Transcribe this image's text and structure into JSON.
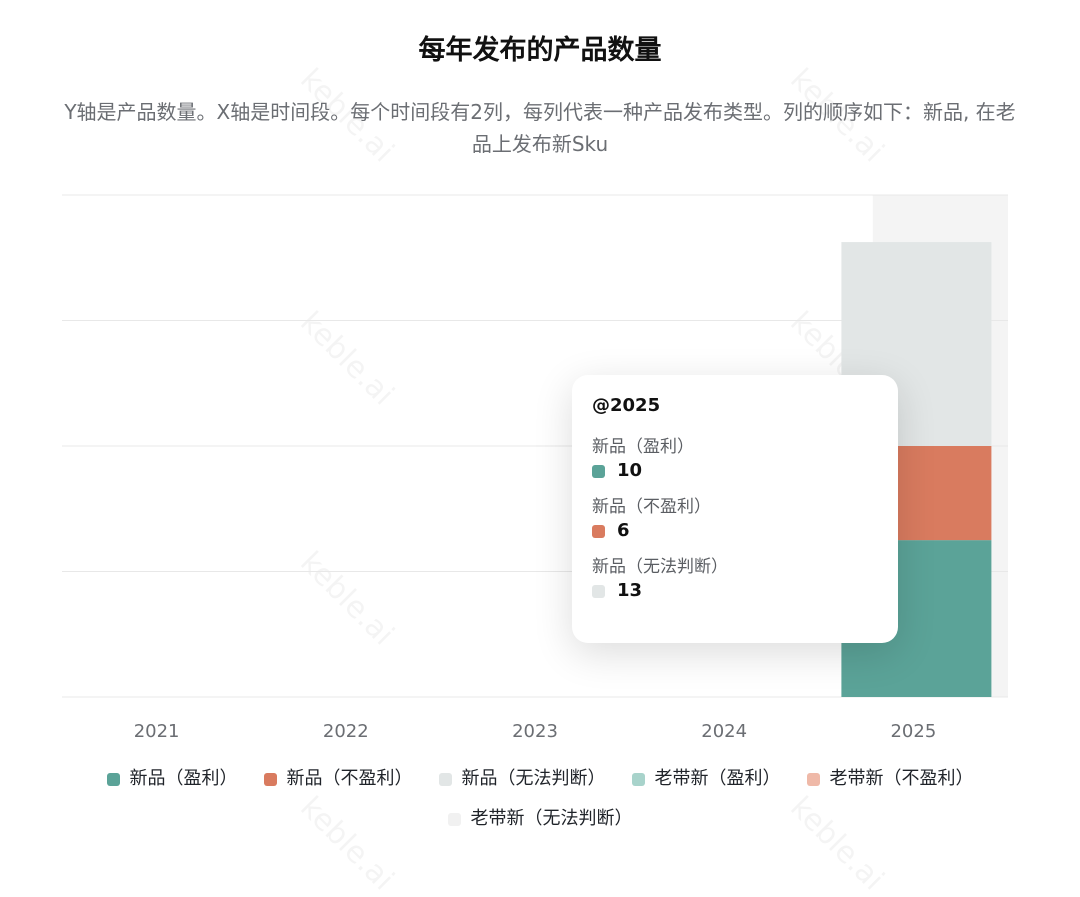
{
  "title": "每年发布的产品数量",
  "subtitle": "Y轴是产品数量。X轴是时间段。每个时间段有2列，每列代表一种产品发布类型。列的顺序如下：新品, 在老品上发布新Sku",
  "watermark": "keble.ai",
  "colors": {
    "new_profit": "#5ba398",
    "new_loss": "#d97b5f",
    "new_unknown": "#e2e6e6",
    "old_profit": "#a8d3cb",
    "old_loss": "#efb9a8",
    "old_unknown": "#f1f1f1",
    "highlight_band": "#f4f4f4",
    "grid": "#e8e8e8"
  },
  "chart_data": {
    "type": "bar",
    "stacked": true,
    "categories": [
      "2021",
      "2022",
      "2023",
      "2024",
      "2025"
    ],
    "series": [
      {
        "name": "新品（盈利）",
        "stack": "新品",
        "values": [
          0,
          0,
          0,
          0,
          10
        ]
      },
      {
        "name": "新品（不盈利）",
        "stack": "新品",
        "values": [
          0,
          0,
          0,
          0,
          6
        ]
      },
      {
        "name": "新品（无法判断）",
        "stack": "新品",
        "values": [
          0,
          0,
          0,
          0,
          13
        ]
      },
      {
        "name": "老带新（盈利）",
        "stack": "老带新",
        "values": [
          0,
          0,
          0,
          0,
          0
        ]
      },
      {
        "name": "老带新（不盈利）",
        "stack": "老带新",
        "values": [
          0,
          0,
          0,
          0,
          0
        ]
      },
      {
        "name": "老带新（无法判断）",
        "stack": "老带新",
        "values": [
          0,
          0,
          0,
          0,
          0
        ]
      }
    ],
    "ylim": [
      0,
      32
    ],
    "grid": true,
    "highlighted_category": "2025"
  },
  "tooltip": {
    "title": "@2025",
    "rows": [
      {
        "name": "新品（盈利）",
        "value": "10",
        "color_key": "new_profit"
      },
      {
        "name": "新品（不盈利）",
        "value": "6",
        "color_key": "new_loss"
      },
      {
        "name": "新品（无法判断）",
        "value": "13",
        "color_key": "new_unknown"
      }
    ]
  },
  "legend": [
    {
      "label": "新品（盈利）",
      "color_key": "new_profit"
    },
    {
      "label": "新品（不盈利）",
      "color_key": "new_loss"
    },
    {
      "label": "新品（无法判断）",
      "color_key": "new_unknown"
    },
    {
      "label": "老带新（盈利）",
      "color_key": "old_profit"
    },
    {
      "label": "老带新（不盈利）",
      "color_key": "old_loss"
    },
    {
      "label": "老带新（无法判断）",
      "color_key": "old_unknown"
    }
  ]
}
